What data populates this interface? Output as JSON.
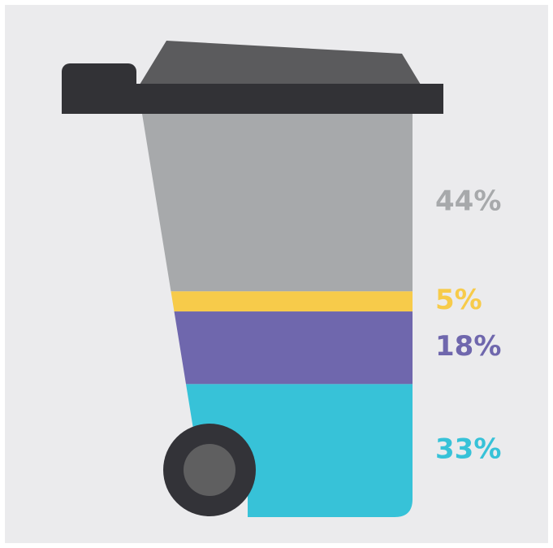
{
  "chart_data": {
    "type": "stacked-bar",
    "values": [
      44,
      5,
      18,
      33
    ],
    "value_labels": [
      "44%",
      "5%",
      "18%",
      "33%"
    ],
    "colors": [
      "#a7a9ab",
      "#f7cb4a",
      "#6f67ad",
      "#37c2d8"
    ],
    "ylim": [
      0,
      100
    ]
  }
}
